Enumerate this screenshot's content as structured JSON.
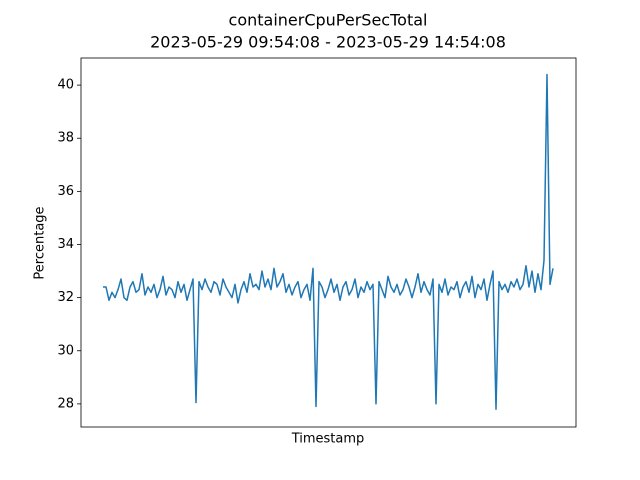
{
  "chart_data": {
    "type": "line",
    "title": "containerCpuPerSecTotal",
    "subtitle": "2023-05-29 09:54:08 - 2023-05-29 14:54:08",
    "x_label": "Timestamp",
    "y_label": "Percentage",
    "color": "#1f77b4",
    "grid": false,
    "ylim": [
      27.13,
      41.02
    ],
    "yticks": [
      28,
      30,
      32,
      34,
      36,
      38,
      40
    ],
    "values": [
      32.4,
      32.4,
      31.9,
      32.2,
      32.0,
      32.3,
      32.7,
      32.0,
      31.9,
      32.4,
      32.6,
      32.2,
      32.3,
      32.9,
      32.1,
      32.4,
      32.2,
      32.5,
      32.0,
      32.3,
      32.8,
      32.1,
      32.4,
      32.3,
      32.0,
      32.6,
      32.2,
      32.5,
      31.9,
      32.3,
      32.7,
      28.05,
      32.6,
      32.3,
      32.7,
      32.4,
      32.2,
      32.6,
      32.5,
      32.1,
      32.7,
      32.4,
      32.2,
      32.0,
      32.5,
      31.8,
      32.3,
      32.6,
      32.2,
      32.9,
      32.4,
      32.5,
      32.3,
      33.0,
      32.4,
      32.7,
      32.3,
      33.1,
      32.4,
      32.6,
      32.9,
      32.2,
      32.5,
      32.1,
      32.4,
      32.6,
      32.0,
      32.3,
      32.5,
      31.9,
      33.1,
      27.9,
      32.6,
      32.4,
      32.0,
      32.3,
      32.7,
      32.2,
      32.5,
      31.9,
      32.4,
      32.6,
      32.1,
      32.3,
      32.7,
      32.0,
      32.4,
      32.2,
      32.6,
      32.3,
      32.5,
      28.0,
      32.6,
      32.3,
      32.0,
      32.8,
      32.4,
      32.2,
      32.5,
      32.1,
      32.3,
      32.7,
      32.4,
      32.0,
      32.4,
      32.9,
      32.2,
      32.6,
      32.3,
      32.1,
      32.7,
      28.0,
      32.5,
      32.2,
      32.7,
      32.1,
      32.4,
      32.3,
      32.6,
      32.0,
      32.4,
      32.6,
      32.2,
      32.8,
      32.0,
      32.5,
      32.3,
      32.7,
      31.9,
      32.5,
      33.0,
      27.8,
      32.6,
      32.3,
      32.5,
      32.2,
      32.6,
      32.4,
      32.7,
      32.3,
      32.5,
      33.2,
      32.4,
      33.0,
      32.2,
      32.9,
      32.3,
      33.4,
      40.4,
      32.5,
      33.1
    ]
  }
}
